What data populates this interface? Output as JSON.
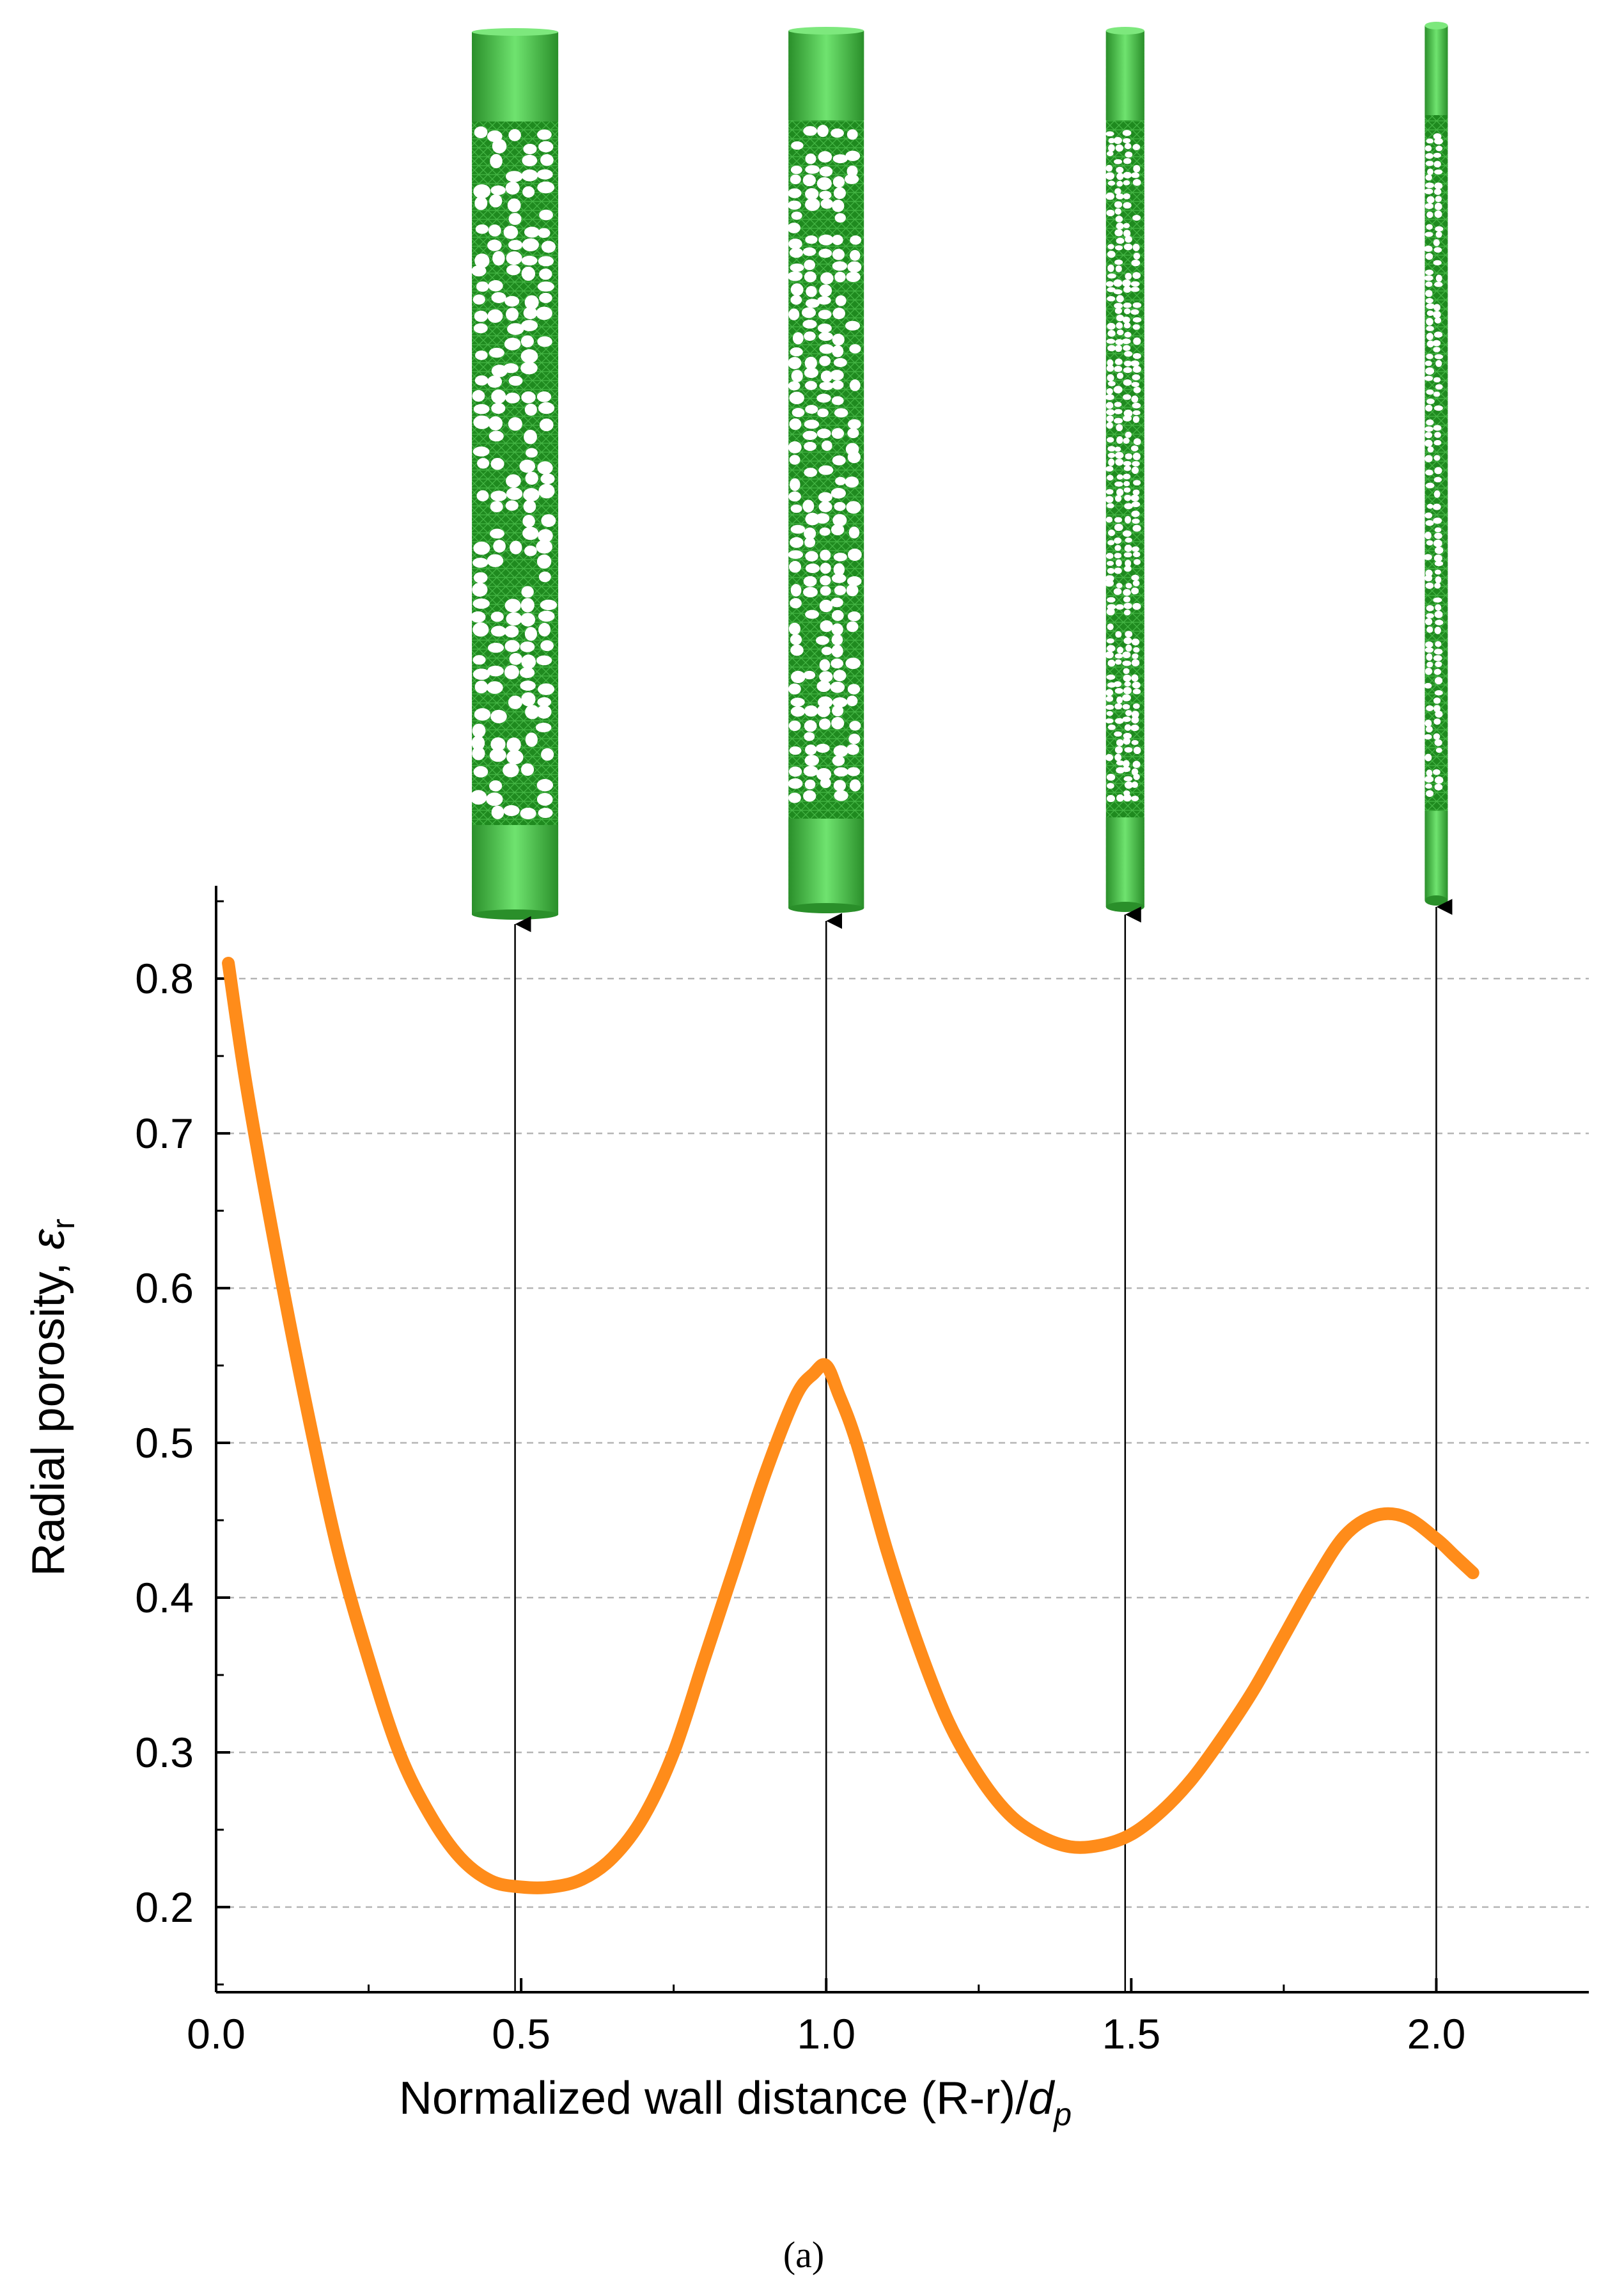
{
  "chart_data": {
    "type": "line",
    "xlabel": "Normalized wall distance (R-r)/",
    "xlabel_var": "d",
    "xlabel_sub": "p",
    "ylabel": "Radial porosity, ",
    "ylabel_sym": "ε",
    "ylabel_sub": "r",
    "xlim": [
      0.0,
      2.25
    ],
    "ylim": [
      0.145,
      0.86
    ],
    "xticks": [
      "0.0",
      "0.5",
      "1.0",
      "1.5",
      "2.0"
    ],
    "yticks": [
      "0.2",
      "0.3",
      "0.4",
      "0.5",
      "0.6",
      "0.7",
      "0.8"
    ],
    "grid": "horizontal dashed",
    "series": [
      {
        "color": "#ff8c1a",
        "x": [
          0.02,
          0.05,
          0.1,
          0.15,
          0.2,
          0.25,
          0.3,
          0.35,
          0.4,
          0.45,
          0.5,
          0.55,
          0.6,
          0.65,
          0.7,
          0.75,
          0.8,
          0.85,
          0.9,
          0.95,
          0.98,
          1.0,
          1.02,
          1.05,
          1.1,
          1.15,
          1.2,
          1.25,
          1.3,
          1.35,
          1.4,
          1.45,
          1.5,
          1.55,
          1.6,
          1.65,
          1.7,
          1.75,
          1.8,
          1.85,
          1.9,
          1.95,
          2.0,
          2.03,
          2.06
        ],
        "y": [
          0.81,
          0.73,
          0.62,
          0.52,
          0.43,
          0.36,
          0.3,
          0.26,
          0.232,
          0.217,
          0.213,
          0.213,
          0.218,
          0.232,
          0.258,
          0.3,
          0.36,
          0.42,
          0.48,
          0.53,
          0.545,
          0.55,
          0.532,
          0.5,
          0.43,
          0.37,
          0.32,
          0.285,
          0.26,
          0.246,
          0.239,
          0.24,
          0.247,
          0.262,
          0.283,
          0.31,
          0.34,
          0.375,
          0.41,
          0.44,
          0.453,
          0.452,
          0.438,
          0.427,
          0.416
        ]
      }
    ],
    "markers": [
      {
        "x": 0.49
      },
      {
        "x": 1.0
      },
      {
        "x": 1.49
      },
      {
        "x": 2.0
      }
    ],
    "caption": "(a)"
  }
}
